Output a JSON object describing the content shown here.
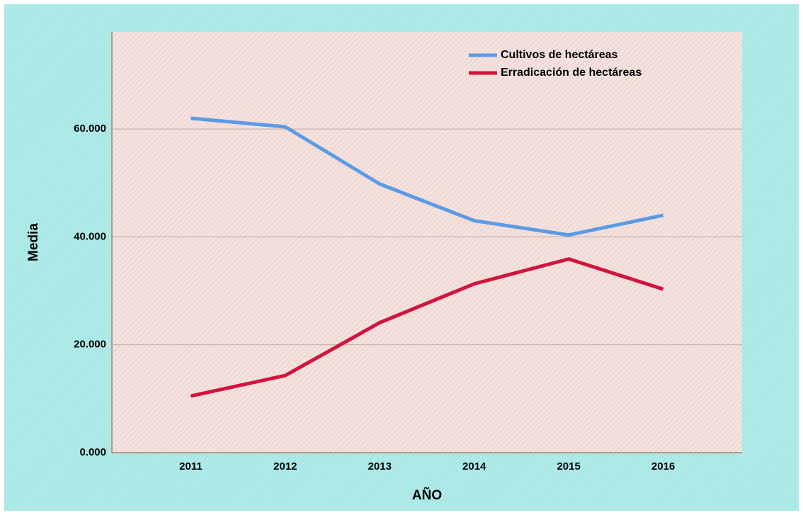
{
  "chart_data": {
    "type": "line",
    "xlabel": "AÑO",
    "ylabel": "Media",
    "categories": [
      "2011",
      "2012",
      "2013",
      "2014",
      "2015",
      "2016"
    ],
    "series": [
      {
        "name": "Cultivos de hectáreas",
        "color": "#5b9be6",
        "values": [
          62000,
          60400,
          49800,
          43000,
          40350,
          44000
        ]
      },
      {
        "name": "Erradicación de hectáreas",
        "color": "#d2143c",
        "values": [
          10500,
          14300,
          24100,
          31300,
          35900,
          30300
        ]
      }
    ],
    "ylim": [
      0,
      78000
    ],
    "yticks": [
      {
        "value": 0,
        "label": "0.000"
      },
      {
        "value": 20000,
        "label": "20.000"
      },
      {
        "value": 40000,
        "label": "40.000"
      },
      {
        "value": 60000,
        "label": "60.000"
      }
    ],
    "grid": true,
    "legend": "upper right"
  }
}
